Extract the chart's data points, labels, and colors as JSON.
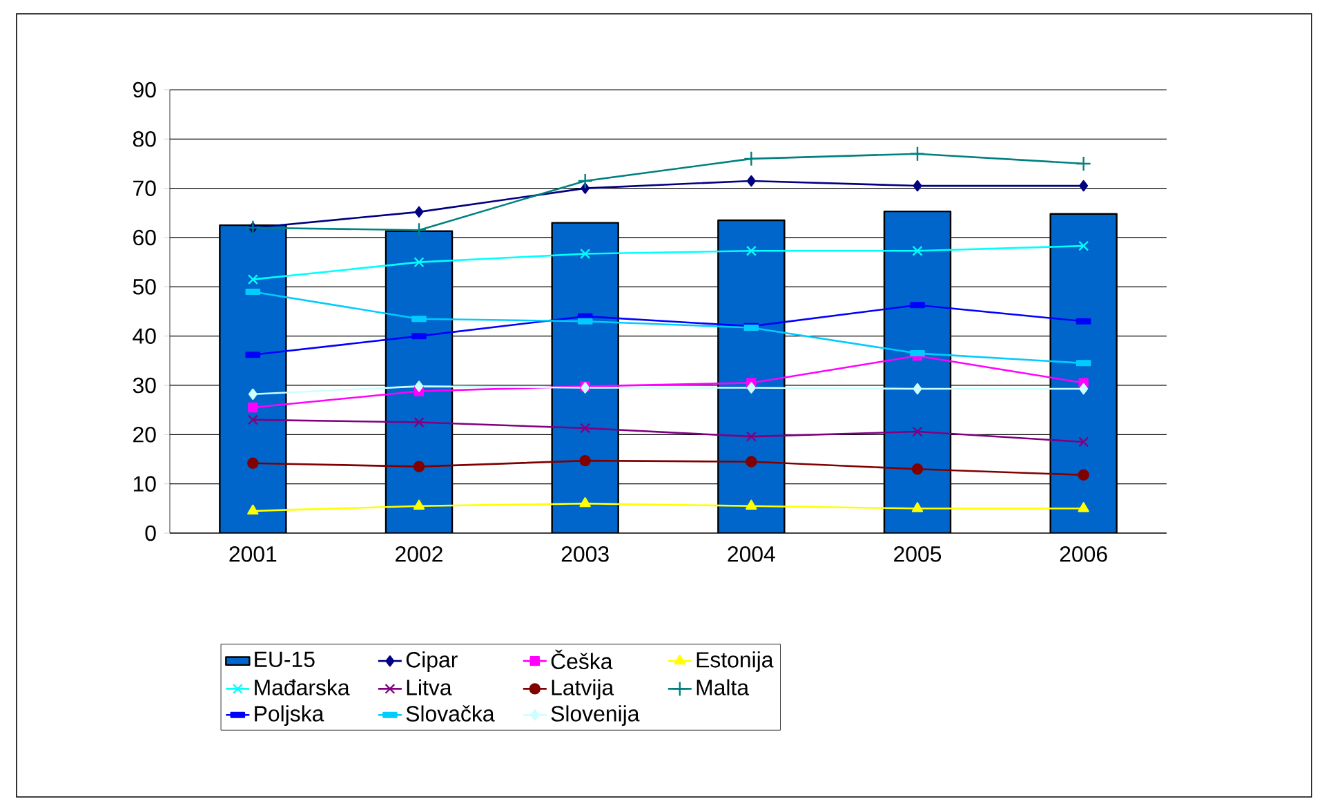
{
  "chart_data": {
    "type": "bar",
    "categories": [
      "2001",
      "2002",
      "2003",
      "2004",
      "2005",
      "2006"
    ],
    "ylim": [
      0,
      90
    ],
    "yticks": [
      0,
      10,
      20,
      30,
      40,
      50,
      60,
      70,
      80,
      90
    ],
    "grid": "y",
    "legend": "bottom",
    "series": [
      {
        "name": "EU-15",
        "color": "#0066cc",
        "values": [
          62.5,
          61.3,
          63,
          63.5,
          65.3,
          64.8
        ]
      },
      {
        "name": "Cipar",
        "type": "line",
        "color": "#000080",
        "marker": "diamond",
        "values": [
          62,
          65.2,
          70,
          71.5,
          70.5,
          70.5
        ]
      },
      {
        "name": "Češka",
        "type": "line",
        "color": "#ff00ff",
        "marker": "square",
        "values": [
          25.5,
          28.8,
          29.8,
          30.5,
          36,
          30.5
        ]
      },
      {
        "name": "Estonija",
        "type": "line",
        "color": "#ffff00",
        "marker": "triangle",
        "values": [
          4.5,
          5.5,
          6,
          5.5,
          5,
          5
        ]
      },
      {
        "name": "Mađarska",
        "type": "line",
        "color": "#00ffff",
        "marker": "cross",
        "values": [
          51.5,
          55,
          56.7,
          57.3,
          57.3,
          58.3
        ]
      },
      {
        "name": "Litva",
        "type": "line",
        "color": "#800080",
        "marker": "cross",
        "values": [
          23,
          22.5,
          21.3,
          19.6,
          20.6,
          18.5
        ]
      },
      {
        "name": "Latvija",
        "type": "line",
        "color": "#800000",
        "marker": "circle",
        "values": [
          14.2,
          13.5,
          14.7,
          14.5,
          13,
          11.8
        ]
      },
      {
        "name": "Malta",
        "type": "line",
        "color": "#008080",
        "marker": "plus",
        "values": [
          62,
          61.5,
          71.5,
          76,
          77,
          75
        ]
      },
      {
        "name": "Poljska",
        "type": "line",
        "color": "#0000ff",
        "marker": "square",
        "values": [
          36.2,
          40,
          44,
          42,
          46.3,
          43
        ]
      },
      {
        "name": "Slovačka",
        "type": "line",
        "color": "#00ccff",
        "marker": "square",
        "values": [
          49,
          43.5,
          43,
          41.7,
          36.5,
          34.5
        ]
      },
      {
        "name": "Slovenija",
        "type": "line",
        "color": "#ccffff",
        "marker": "diamond",
        "values": [
          28.2,
          29.8,
          29.5,
          29.5,
          29.3,
          29.3
        ]
      }
    ]
  }
}
